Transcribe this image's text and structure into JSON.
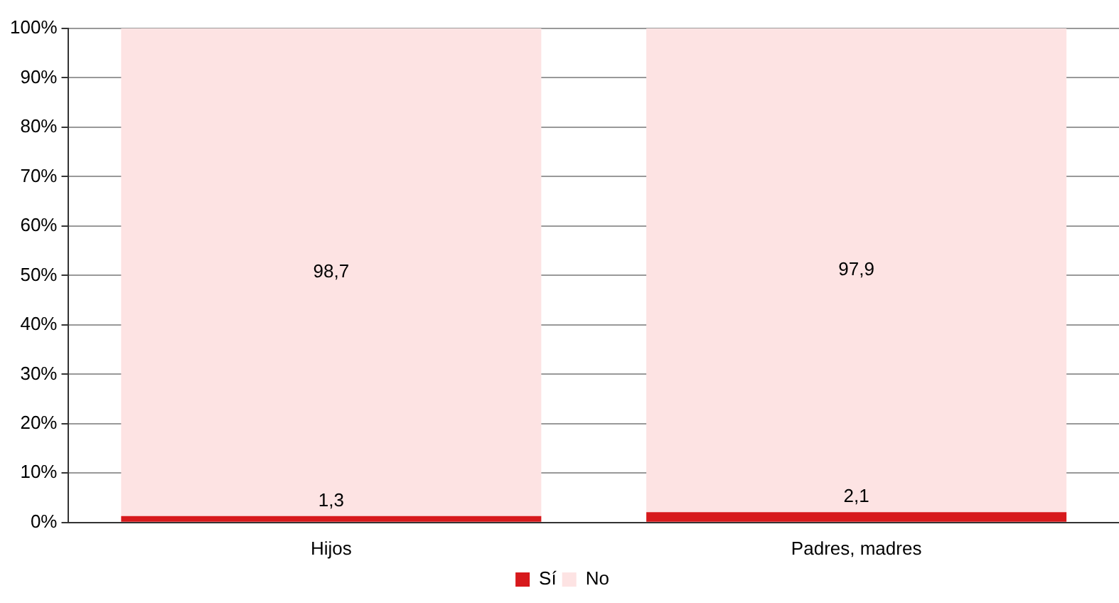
{
  "chart_data": {
    "type": "bar",
    "stacked": true,
    "categories": [
      "Hijos",
      "Padres, madres"
    ],
    "series": [
      {
        "name": "Sí",
        "color": "#d7191c",
        "values": [
          1.3,
          2.1
        ],
        "value_labels": [
          "1,3",
          "2,1"
        ]
      },
      {
        "name": "No",
        "color": "#fde3e3",
        "values": [
          98.7,
          97.9
        ],
        "value_labels": [
          "98,7",
          "97,9"
        ]
      }
    ],
    "ylim": [
      0,
      100
    ],
    "yticks": [
      {
        "value": 0,
        "label": "0%"
      },
      {
        "value": 10,
        "label": "10%"
      },
      {
        "value": 20,
        "label": "20%"
      },
      {
        "value": 30,
        "label": "30%"
      },
      {
        "value": 40,
        "label": "40%"
      },
      {
        "value": 50,
        "label": "50%"
      },
      {
        "value": 60,
        "label": "60%"
      },
      {
        "value": 70,
        "label": "70%"
      },
      {
        "value": 80,
        "label": "80%"
      },
      {
        "value": 90,
        "label": "90%"
      },
      {
        "value": 100,
        "label": "100%"
      }
    ],
    "grid": "y",
    "legend": "bottom"
  }
}
